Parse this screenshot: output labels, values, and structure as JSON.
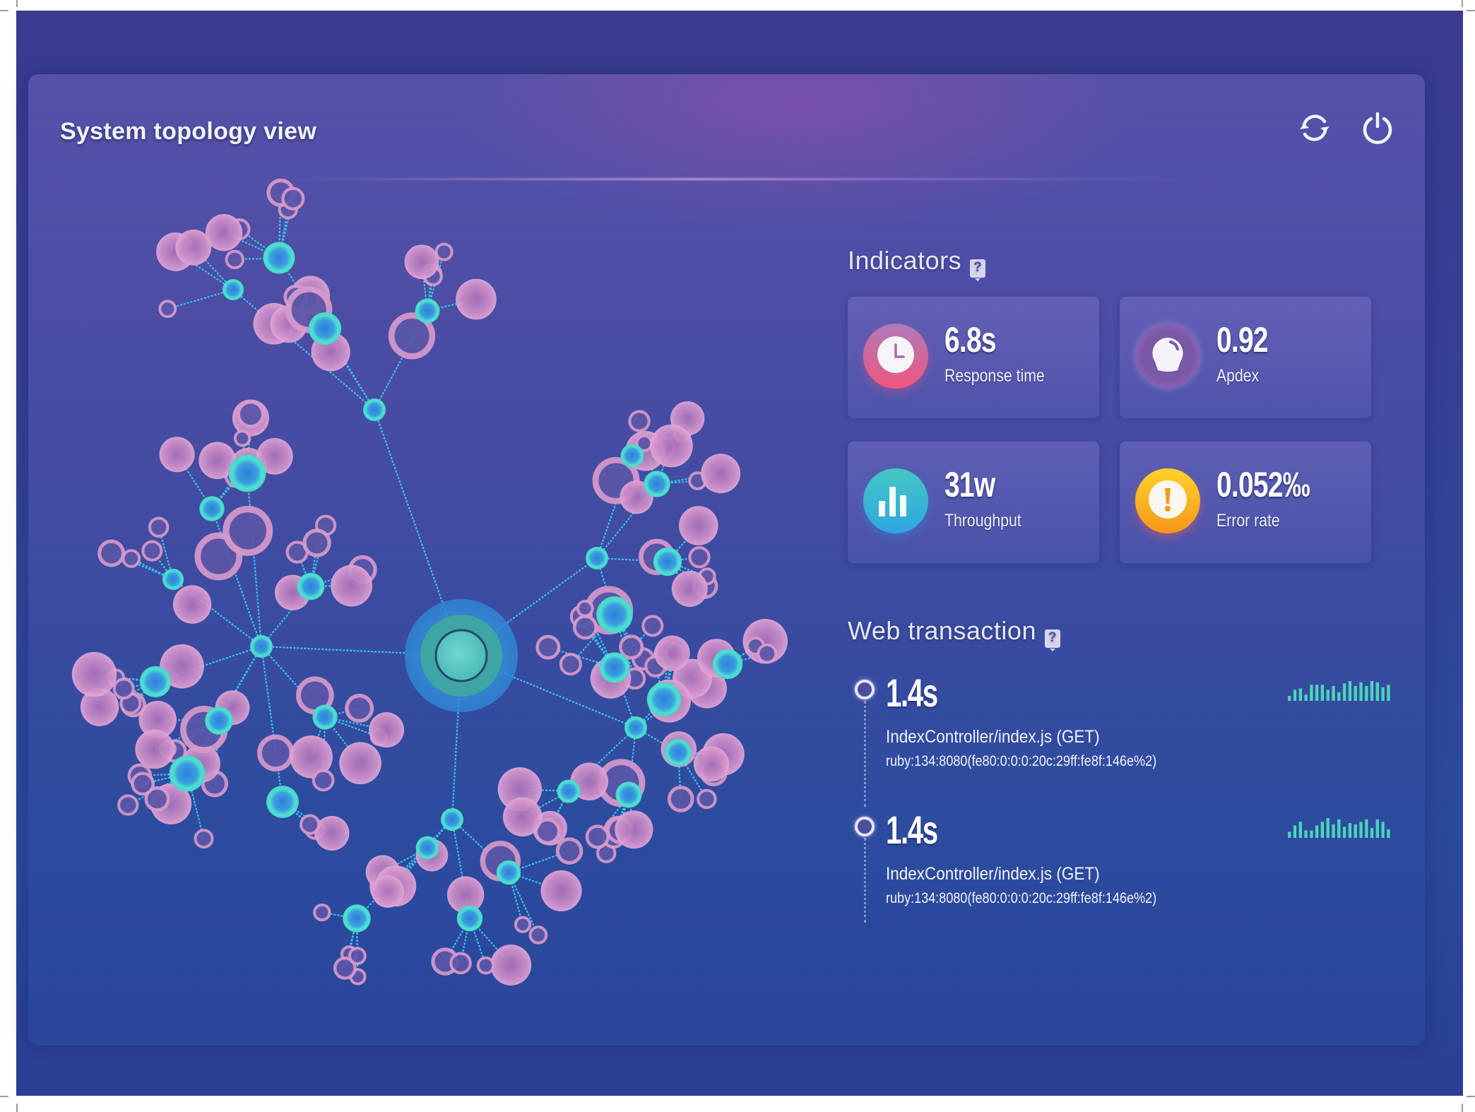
{
  "header": {
    "title": "System topology view",
    "actions": [
      {
        "name": "refresh",
        "icon": "refresh-icon"
      },
      {
        "name": "power",
        "icon": "power-icon"
      }
    ]
  },
  "indicators": {
    "title": "Indicators",
    "help_icon": "?",
    "cards": [
      {
        "value": "6.8s",
        "label": "Response time",
        "icon": "clock-icon",
        "color_top": "#b27ab5",
        "color_bottom": "#ef5a86"
      },
      {
        "value": "0.92",
        "label": "Apdex",
        "icon": "bulb-icon",
        "color_top": "#8a66b4",
        "color_bottom": "#7a5aa8"
      },
      {
        "value": "31w",
        "label": "Throughput",
        "icon": "bar-chart-icon",
        "color_top": "#3fc4c4",
        "color_bottom": "#2fa8e0"
      },
      {
        "value": "0.052‰",
        "label": "Error rate",
        "icon": "alert-icon",
        "color_top": "#ffd02a",
        "color_bottom": "#f59a1b"
      }
    ]
  },
  "web_transaction": {
    "title": "Web transaction",
    "help_icon": "?",
    "items": [
      {
        "value": "1.4s",
        "name": "IndexController/index.js (GET)",
        "host": "ruby:134:8080(fe80:0:0:0:20c:29ff:fe8f:146e%2)",
        "sparkline": [
          4,
          9,
          10,
          5,
          13,
          13,
          13,
          9,
          12,
          7,
          14,
          16,
          12,
          15,
          12,
          16,
          15,
          11,
          13
        ]
      },
      {
        "value": "1.4s",
        "name": "IndexController/index.js (GET)",
        "host": "ruby:134:8080(fe80:0:0:0:20c:29ff:fe8f:146e%2)",
        "sparkline": [
          5,
          10,
          13,
          6,
          6,
          10,
          13,
          16,
          11,
          15,
          9,
          12,
          11,
          13,
          15,
          8,
          15,
          13,
          7
        ]
      }
    ]
  },
  "colors": {
    "edge": "#38c3ee",
    "pink_node": "#d79acb",
    "cyan_node": "#4dd6cf",
    "hub": "#58c8c0",
    "sparkline_start": "#3ed18a",
    "sparkline_end": "#5ad7ea"
  }
}
